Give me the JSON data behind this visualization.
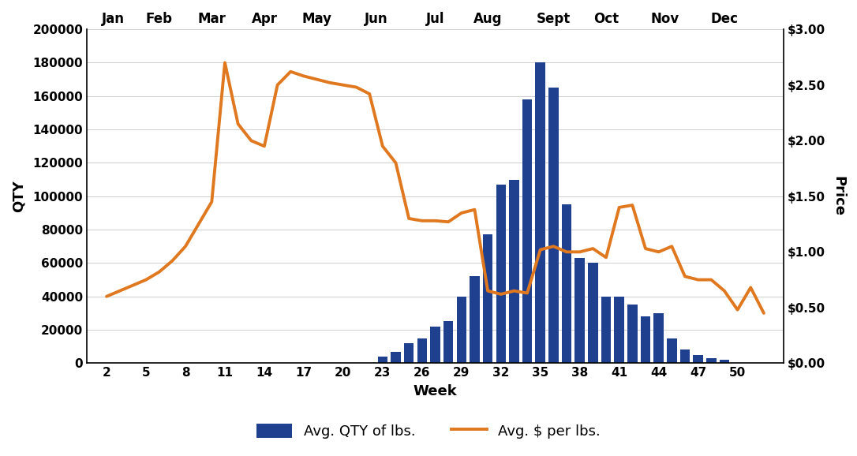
{
  "weeks": [
    2,
    3,
    4,
    5,
    6,
    7,
    8,
    9,
    10,
    11,
    12,
    13,
    14,
    15,
    16,
    17,
    18,
    19,
    20,
    21,
    22,
    23,
    24,
    25,
    26,
    27,
    28,
    29,
    30,
    31,
    32,
    33,
    34,
    35,
    36,
    37,
    38,
    39,
    40,
    41,
    42,
    43,
    44,
    45,
    46,
    47,
    48,
    49,
    50,
    51,
    52
  ],
  "qty": [
    0,
    0,
    0,
    0,
    0,
    0,
    0,
    0,
    0,
    0,
    0,
    0,
    0,
    0,
    0,
    0,
    0,
    0,
    0,
    0,
    0,
    4000,
    7000,
    12000,
    15000,
    22000,
    25000,
    40000,
    52000,
    77000,
    107000,
    110000,
    158000,
    180000,
    165000,
    95000,
    63000,
    60000,
    40000,
    40000,
    35000,
    28000,
    30000,
    15000,
    8000,
    5000,
    3000,
    2000,
    0,
    0,
    0
  ],
  "price": [
    0.6,
    0.65,
    0.7,
    0.75,
    0.82,
    0.92,
    1.05,
    1.25,
    1.45,
    2.7,
    2.15,
    2.0,
    1.95,
    2.5,
    2.62,
    2.58,
    2.55,
    2.52,
    2.5,
    2.48,
    2.42,
    1.95,
    1.8,
    1.3,
    1.28,
    1.28,
    1.27,
    1.35,
    1.38,
    0.65,
    0.62,
    0.65,
    0.63,
    1.02,
    1.05,
    1.0,
    1.0,
    1.03,
    0.95,
    1.4,
    1.42,
    1.03,
    1.0,
    1.05,
    0.78,
    0.75,
    0.75,
    0.65,
    0.48,
    0.68,
    0.45
  ],
  "bar_color": "#1F3F8F",
  "line_color": "#E07820",
  "qty_ylim": [
    0,
    200000
  ],
  "price_ylim": [
    0.0,
    3.0
  ],
  "qty_yticks": [
    0,
    20000,
    40000,
    60000,
    80000,
    100000,
    120000,
    140000,
    160000,
    180000,
    200000
  ],
  "qty_yticklabels": [
    "0",
    "20000",
    "40000",
    "60000",
    "80000",
    "100000",
    "120000",
    "140000",
    "160000",
    "180000",
    "200000"
  ],
  "price_yticks": [
    0.0,
    0.5,
    1.0,
    1.5,
    2.0,
    2.5,
    3.0
  ],
  "price_yticklabels": [
    "$0.00",
    "$0.50",
    "$1.00",
    "$1.50",
    "$2.00",
    "$2.50",
    "$3.00"
  ],
  "xlabel": "Week",
  "ylabel_left": "QTY",
  "ylabel_right": "Price",
  "xtick_positions": [
    2,
    5,
    8,
    11,
    14,
    17,
    20,
    23,
    26,
    29,
    32,
    35,
    38,
    41,
    44,
    47,
    50
  ],
  "month_labels": [
    "Jan",
    "Feb",
    "Mar",
    "Apr",
    "May",
    "Jun",
    "Jul",
    "Aug",
    "Sept",
    "Oct",
    "Nov",
    "Dec"
  ],
  "month_week_centers": [
    2.5,
    6.0,
    10.0,
    14.0,
    18.0,
    22.5,
    27.0,
    31.0,
    36.0,
    40.0,
    44.5,
    49.0
  ],
  "legend_bar_label": "Avg. QTY of lbs.",
  "legend_line_label": "Avg. $ per lbs.",
  "line_width": 2.8,
  "xlim_left": 0.5,
  "xlim_right": 53.5,
  "fig_width": 10.86,
  "fig_height": 5.78,
  "dpi": 100
}
